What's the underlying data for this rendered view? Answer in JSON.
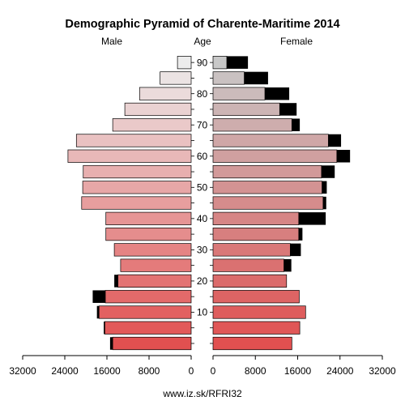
{
  "chart_data": {
    "type": "bar",
    "title": "Demographic Pyramid of Charente-Maritime 2014",
    "left_label": "Male",
    "center_label": "Age",
    "right_label": "Female",
    "footer": "www.iz.sk/RFRI32",
    "age_groups": [
      "0-4",
      "5-9",
      "10-14",
      "15-19",
      "20-24",
      "25-29",
      "30-34",
      "35-39",
      "40-44",
      "45-49",
      "50-54",
      "55-59",
      "60-64",
      "65-69",
      "70-74",
      "75-79",
      "80-84",
      "85-89",
      "90+"
    ],
    "age_tick_labels": [
      "10",
      "20",
      "30",
      "40",
      "50",
      "60",
      "70",
      "80",
      "90"
    ],
    "age_tick_groups": [
      2,
      4,
      6,
      8,
      10,
      12,
      14,
      16,
      18
    ],
    "x_tick_labels_left": [
      "32000",
      "24000",
      "16000",
      "8000",
      "0"
    ],
    "x_tick_labels_right": [
      "0",
      "8000",
      "16000",
      "24000",
      "32000"
    ],
    "xlim": [
      0,
      32000
    ],
    "colors": {
      "bar_fill_male": "#e8a0a0",
      "bar_fill_female": "#d98a8a",
      "surplus": "#000000"
    },
    "series": [
      {
        "name": "Male",
        "values": [
          15400,
          16600,
          17900,
          18700,
          14600,
          13400,
          14600,
          16200,
          16200,
          20800,
          20600,
          20500,
          23400,
          21800,
          14900,
          12600,
          9800,
          5900,
          2600
        ]
      },
      {
        "name": "Female",
        "values": [
          14900,
          16400,
          17500,
          16300,
          13900,
          14800,
          16600,
          16900,
          21300,
          21400,
          21500,
          23000,
          25900,
          24200,
          16400,
          15800,
          14400,
          10400,
          6600
        ]
      }
    ]
  }
}
